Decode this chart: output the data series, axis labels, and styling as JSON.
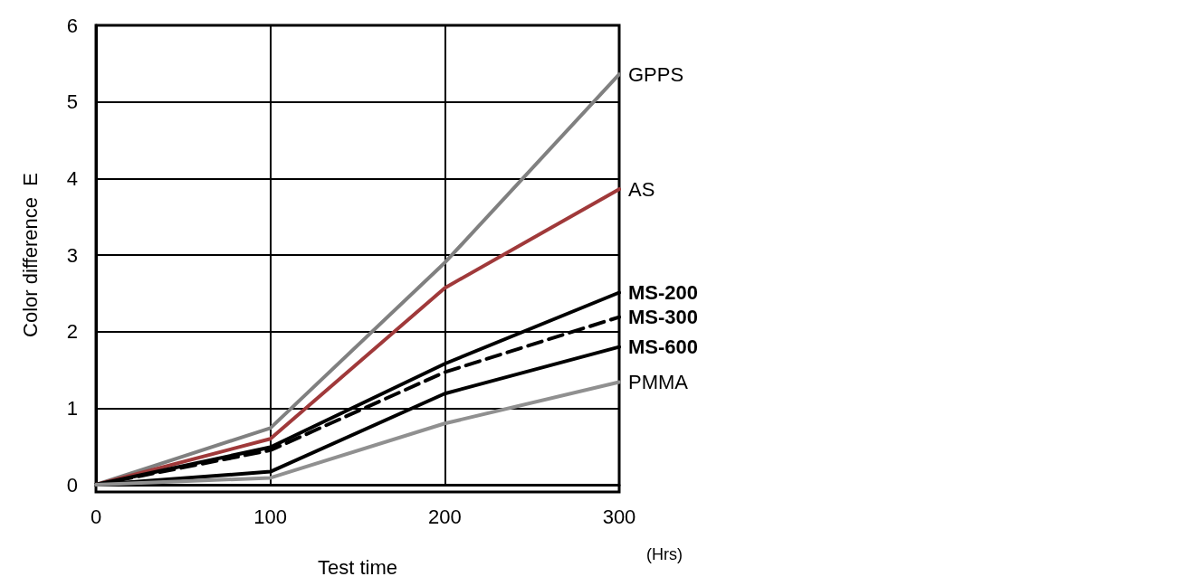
{
  "chart_data": {
    "type": "line",
    "xlabel": "Test time",
    "ylabel": "Color difference  E",
    "annotations": [
      "(Hrs)"
    ],
    "x": [
      0,
      100,
      200,
      300
    ],
    "xlim": [
      0,
      300
    ],
    "xticks": [
      0,
      100,
      200,
      300
    ],
    "ylim": [
      0,
      6
    ],
    "yticks": [
      0,
      1,
      2,
      3,
      4,
      5,
      6
    ],
    "grid": true,
    "marker": "none",
    "line_style": "solid",
    "legend": false,
    "series": [
      {
        "name": "GPPS",
        "color": "#808080",
        "values": [
          0,
          0.74,
          2.9,
          5.36
        ]
      },
      {
        "name": "AS",
        "color": "#a0393a",
        "values": [
          0,
          0.6,
          2.57,
          3.86
        ]
      },
      {
        "name": "MS-200",
        "color": "#000000",
        "values": [
          0,
          0.49,
          1.58,
          2.51
        ]
      },
      {
        "name": "MS-300",
        "color": "#000000",
        "line_style": "dashed",
        "values": [
          0,
          0.45,
          1.47,
          2.19
        ]
      },
      {
        "name": "MS-600",
        "color": "#000000",
        "values": [
          0,
          0.17,
          1.19,
          1.8
        ]
      },
      {
        "name": "PMMA",
        "color": "#909090",
        "values": [
          0,
          0.09,
          0.8,
          1.34
        ]
      }
    ]
  }
}
